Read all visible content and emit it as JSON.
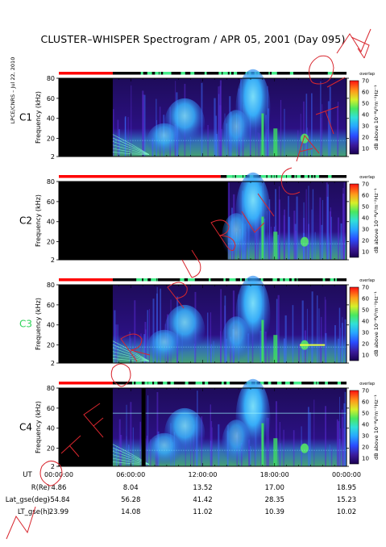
{
  "title": "CLUSTER–WHISPER Spectrogram / APR 05, 2001 (Day 095)",
  "credit": "LPCE/CNRS – Jul 22, 2010",
  "colors": {
    "plot_bg": "#2a0a6a",
    "off": "#000000",
    "status_red": "#ff0000",
    "status_green": "#44ee88",
    "status_black": "#000000",
    "c3_label": "#2fd35a",
    "watermark": "#d8262e"
  },
  "chart_data": [
    {
      "type": "heatmap",
      "panel": "C1",
      "ylabel": "Frequency (kHz)",
      "yticks": [
        2,
        20,
        40,
        60,
        80
      ],
      "ylim": [
        2,
        80
      ],
      "xlim": [
        "00:00:00",
        "24:00:00"
      ],
      "colorbar": {
        "label": "dB above 10⁻⁸V²m⁻²Hz⁻¹",
        "ticks": [
          10,
          20,
          30,
          40,
          50,
          60,
          70
        ],
        "range": [
          5,
          70
        ],
        "note": "overlap"
      },
      "data_start_hour": 4.5
    },
    {
      "type": "heatmap",
      "panel": "C2",
      "ylabel": "Frequency (kHz)",
      "yticks": [
        2,
        20,
        40,
        60,
        80
      ],
      "ylim": [
        2,
        80
      ],
      "xlim": [
        "00:00:00",
        "24:00:00"
      ],
      "colorbar": {
        "label": "dB above 10⁻⁸V²m⁻²Hz⁻¹",
        "ticks": [
          10,
          20,
          30,
          40,
          50,
          60,
          70
        ],
        "range": [
          5,
          70
        ],
        "note": "overlap"
      },
      "data_start_hour": 14.1
    },
    {
      "type": "heatmap",
      "panel": "C3",
      "ylabel": "Frequency (kHz)",
      "yticks": [
        2,
        20,
        40,
        60,
        80
      ],
      "ylim": [
        2,
        80
      ],
      "xlim": [
        "00:00:00",
        "24:00:00"
      ],
      "colorbar": {
        "label": "dB above 10⁻⁸V²m⁻²Hz⁻¹",
        "ticks": [
          10,
          20,
          30,
          40,
          50,
          60,
          70
        ],
        "range": [
          5,
          70
        ],
        "note": "overlap"
      },
      "data_start_hour": 4.5
    },
    {
      "type": "heatmap",
      "panel": "C4",
      "ylabel": "Frequency (kHz)",
      "yticks": [
        2,
        20,
        40,
        60,
        80
      ],
      "ylim": [
        2,
        80
      ],
      "xlim": [
        "00:00:00",
        "24:00:00"
      ],
      "colorbar": {
        "label": "dB above 10⁻⁸V²m⁻²Hz⁻¹",
        "ticks": [
          10,
          20,
          30,
          40,
          50,
          60,
          70
        ],
        "range": [
          5,
          70
        ],
        "note": "overlap"
      },
      "data_start_hour": 4.5
    }
  ],
  "xaxis": {
    "label": "UT",
    "ticks": [
      "00:00:00",
      "06:00:00",
      "12:00:00",
      "18:00:00",
      "00:00:00"
    ],
    "hours": [
      0,
      6,
      12,
      18,
      24
    ]
  },
  "ephemeris": [
    {
      "label": "R(Re)",
      "values": [
        "4.86",
        "8.04",
        "13.52",
        "17.00",
        "18.95"
      ]
    },
    {
      "label": "Lat_gse(deg)",
      "values": [
        "-54.84",
        "56.28",
        "41.42",
        "28.35",
        "15.23"
      ]
    },
    {
      "label": "LT_gse(h)",
      "values": [
        "23.99",
        "14.08",
        "11.02",
        "10.39",
        "10.02"
      ]
    }
  ],
  "watermark": "NOT FOR PUBLICATION"
}
